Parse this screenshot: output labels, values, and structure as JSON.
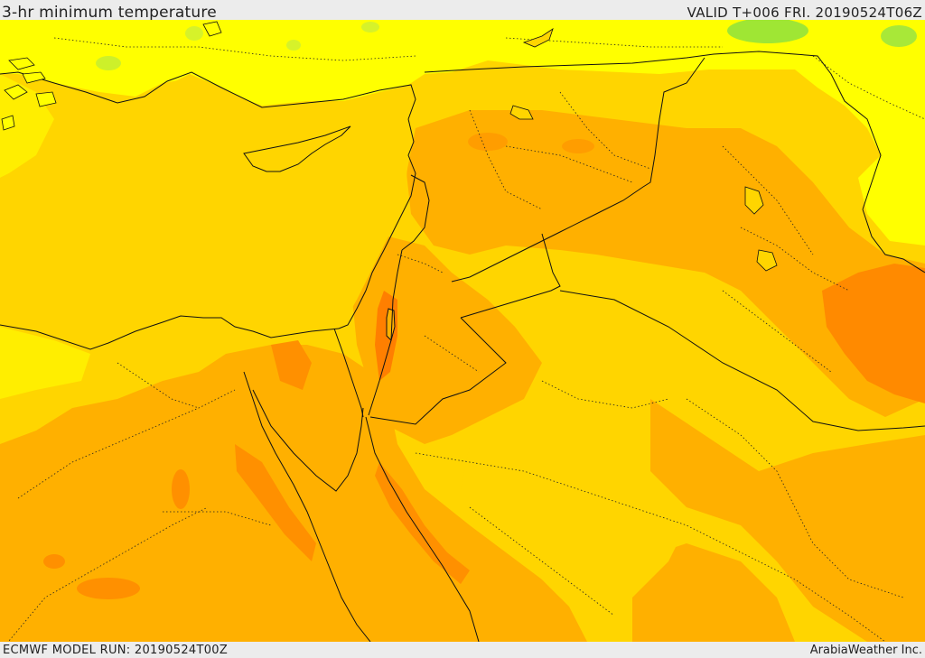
{
  "header": {
    "title": "3-hr minimum temperature",
    "valid": "VALID T+006 FRI. 20190524T06Z"
  },
  "footer": {
    "model_run": "ECMWF MODEL RUN: 20190524T00Z",
    "credit": "ArabiaWeather Inc."
  },
  "map": {
    "region": "Eastern Mediterranean / Levant",
    "colors": {
      "green": "#9fe634",
      "bright_yellow": "#ffff00",
      "yellow": "#ffdd00",
      "gold": "#ffd000",
      "light_orange": "#ffb000",
      "orange": "#ff9900",
      "dark_orange": "#ff7f00",
      "borders": "#000000"
    }
  }
}
